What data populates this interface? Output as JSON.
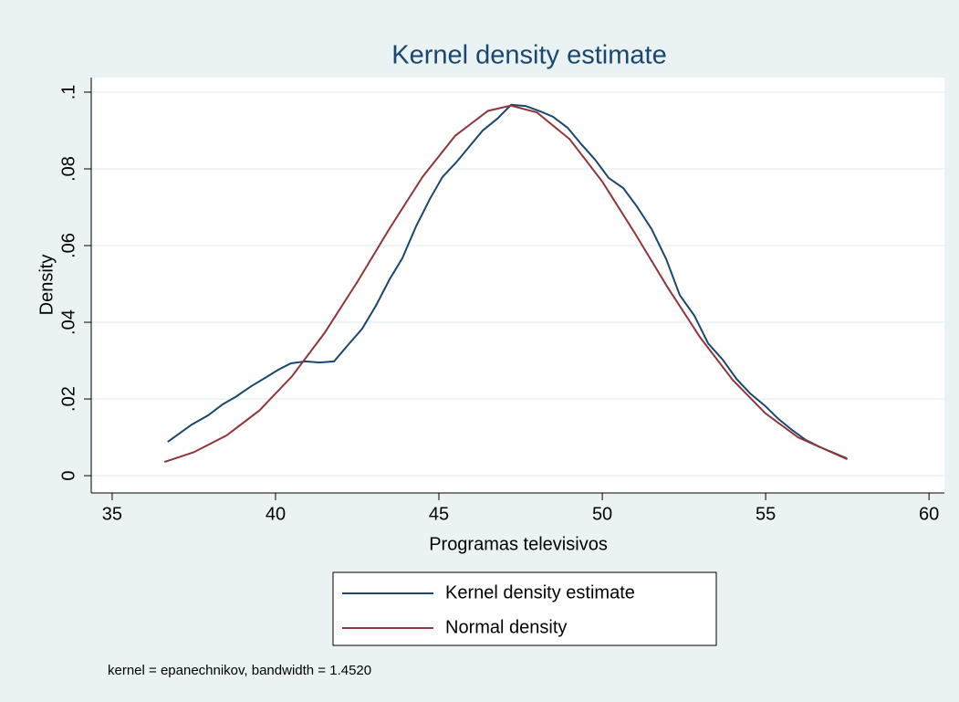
{
  "chart_data": {
    "type": "line",
    "title": "Kernel density estimate",
    "xlabel": "Programas televisivos",
    "ylabel": "Density",
    "note": "kernel = epanechnikov, bandwidth = 1.4520",
    "xlim": [
      34.36,
      60.47
    ],
    "ylim": [
      -0.0045,
      0.1038
    ],
    "xticks": [
      35,
      40,
      45,
      50,
      55,
      60
    ],
    "yticks": [
      0,
      {
        "value": 0.02,
        "label": ".02"
      },
      {
        "value": 0.04,
        "label": ".04"
      },
      {
        "value": 0.06,
        "label": ".06"
      },
      {
        "value": 0.08,
        "label": ".08"
      },
      {
        "value": 0.1,
        "label": ".1"
      }
    ],
    "grid": true,
    "legend": "bottom",
    "series": [
      {
        "name": "Kernel density estimate",
        "color": "#1a476f",
        "x": [
          36.7,
          37.43,
          37.93,
          38.38,
          38.77,
          39.25,
          39.72,
          40.08,
          40.47,
          40.92,
          41.34,
          41.79,
          42.21,
          42.65,
          43.07,
          43.49,
          43.88,
          44.3,
          44.72,
          45.11,
          45.53,
          45.92,
          46.34,
          46.79,
          47.21,
          47.65,
          48.1,
          48.49,
          48.94,
          49.36,
          49.78,
          50.2,
          50.64,
          51.06,
          51.51,
          51.96,
          52.37,
          52.82,
          53.24,
          53.69,
          54.11,
          54.53,
          54.97,
          55.39,
          55.81,
          56.23,
          56.68,
          57.49
        ],
        "values": [
          0.0088,
          0.0133,
          0.0157,
          0.0186,
          0.0205,
          0.0233,
          0.0257,
          0.0276,
          0.0293,
          0.0298,
          0.0295,
          0.0298,
          0.034,
          0.0383,
          0.0443,
          0.0512,
          0.0567,
          0.065,
          0.0721,
          0.0779,
          0.0817,
          0.0857,
          0.09,
          0.0931,
          0.0967,
          0.0964,
          0.095,
          0.0936,
          0.0907,
          0.0864,
          0.0824,
          0.0776,
          0.075,
          0.0702,
          0.0643,
          0.0564,
          0.0471,
          0.0417,
          0.0345,
          0.0302,
          0.0252,
          0.0214,
          0.0183,
          0.0148,
          0.0119,
          0.0093,
          0.0074,
          0.0045
        ]
      },
      {
        "name": "Normal density",
        "color": "#90353b",
        "x": [
          36.6,
          37.5,
          38.5,
          39.5,
          40.5,
          41.5,
          42.5,
          43.5,
          44.5,
          45.5,
          46.5,
          47.2,
          48,
          49,
          50,
          51,
          52,
          53,
          54,
          55,
          56,
          57.5
        ],
        "values": [
          0.00358,
          0.00612,
          0.01048,
          0.01696,
          0.02587,
          0.03721,
          0.05049,
          0.06459,
          0.07792,
          0.08865,
          0.09512,
          0.0965,
          0.09471,
          0.08776,
          0.07668,
          0.06319,
          0.0491,
          0.03599,
          0.02487,
          0.0162,
          0.00996,
          0.0043
        ]
      }
    ]
  }
}
